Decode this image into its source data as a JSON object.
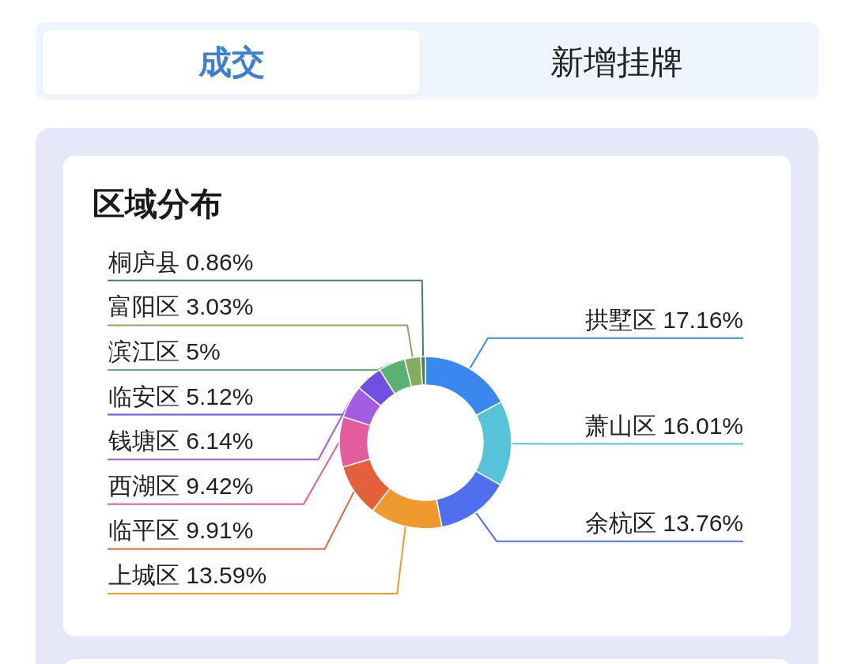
{
  "chart_data": {
    "type": "donut",
    "title": "区域分布",
    "annotations": [
      "成交",
      "新增挂牌"
    ],
    "categories": [
      "拱墅区",
      "萧山区",
      "余杭区",
      "上城区",
      "临平区",
      "西湖区",
      "钱塘区",
      "临安区",
      "滨江区",
      "富阳区",
      "桐庐县"
    ],
    "values": [
      17.16,
      16.01,
      13.76,
      13.59,
      9.91,
      9.42,
      6.14,
      5.12,
      5,
      3.03,
      0.86
    ],
    "value_labels": [
      "17.16%",
      "16.01%",
      "13.76%",
      "13.59%",
      "9.91%",
      "9.42%",
      "6.14%",
      "5.12%",
      "5%",
      "3.03%",
      "0.86%"
    ],
    "colors": [
      "#3b87f0",
      "#56c3d9",
      "#4f6ff0",
      "#ef9a2e",
      "#e4603b",
      "#e35d9e",
      "#a35de0",
      "#7050e0",
      "#5bb073",
      "#86ad5f",
      "#3e7f6e"
    ]
  }
}
